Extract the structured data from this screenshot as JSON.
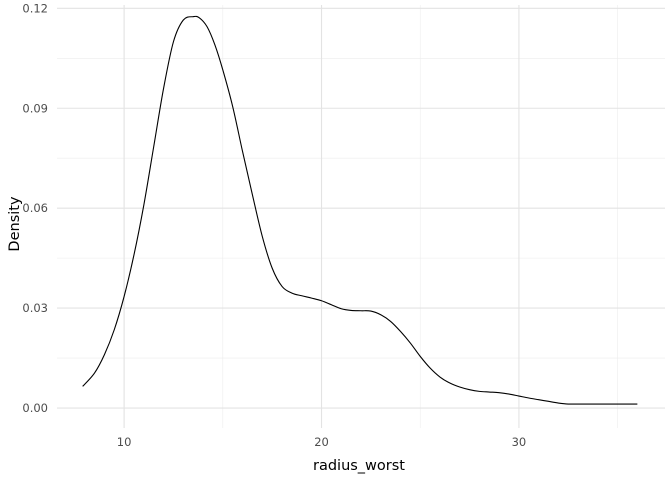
{
  "chart_data": {
    "type": "line",
    "title": "",
    "xlabel": "radius_worst",
    "ylabel": "Density",
    "xlim": [
      6.6,
      37.4
    ],
    "ylim": [
      -0.006,
      0.121
    ],
    "x_ticks": [
      10,
      20,
      30
    ],
    "x_tick_labels": [
      "10",
      "20",
      "30"
    ],
    "y_ticks": [
      0.0,
      0.03,
      0.06,
      0.09,
      0.12
    ],
    "y_tick_labels": [
      "0.00",
      "0.03",
      "0.06",
      "0.09",
      "0.12"
    ],
    "x_minor_ticks": [
      15,
      25,
      35
    ],
    "y_minor_ticks": [
      0.015,
      0.045,
      0.075,
      0.105
    ],
    "grid": true,
    "legend": "none",
    "series": [
      {
        "color": "#000000",
        "x": [
          7.9,
          8.5,
          9.0,
          9.5,
          10.0,
          10.5,
          11.0,
          11.5,
          12.0,
          12.5,
          13.0,
          13.5,
          13.8,
          14.2,
          14.6,
          15.0,
          15.5,
          16.0,
          16.5,
          17.0,
          17.5,
          18.0,
          18.5,
          19.0,
          19.5,
          20.0,
          20.5,
          21.0,
          21.5,
          22.0,
          22.5,
          23.0,
          23.5,
          24.0,
          24.5,
          25.0,
          25.5,
          26.0,
          26.5,
          27.0,
          27.5,
          28.0,
          28.5,
          29.0,
          29.5,
          30.0,
          30.5,
          31.0,
          31.5,
          32.0,
          32.5,
          33.0,
          33.5,
          34.0,
          34.5,
          35.0,
          35.5,
          36.0
        ],
        "y": [
          0.0065,
          0.0105,
          0.016,
          0.0235,
          0.0335,
          0.046,
          0.061,
          0.0785,
          0.096,
          0.11,
          0.1165,
          0.1175,
          0.1172,
          0.1145,
          0.109,
          0.1015,
          0.0905,
          0.077,
          0.064,
          0.0515,
          0.042,
          0.0365,
          0.0345,
          0.0337,
          0.033,
          0.0322,
          0.031,
          0.0298,
          0.0293,
          0.0292,
          0.0291,
          0.028,
          0.026,
          0.023,
          0.0195,
          0.0155,
          0.012,
          0.0093,
          0.0075,
          0.0063,
          0.0055,
          0.005,
          0.0048,
          0.0046,
          0.0042,
          0.0036,
          0.003,
          0.0025,
          0.002,
          0.0015,
          0.0012,
          0.0012,
          0.0012,
          0.0012,
          0.0012,
          0.0012,
          0.0012,
          0.0012
        ]
      }
    ]
  }
}
